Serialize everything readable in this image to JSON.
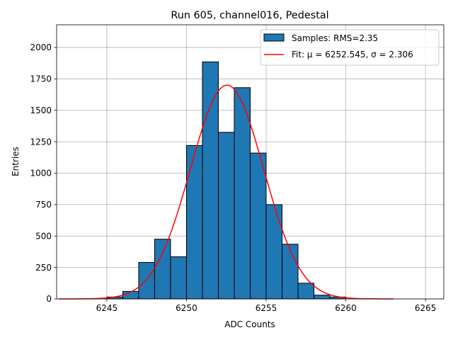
{
  "chart_data": {
    "type": "bar",
    "title": "Run 605, channel016, Pedestal",
    "xlabel": "ADC Counts",
    "ylabel": "Entries",
    "xlim": [
      6241.85,
      6266.15
    ],
    "ylim": [
      0,
      2180
    ],
    "grid": true,
    "legend_position": "top-right",
    "xticks": [
      6245,
      6250,
      6255,
      6260,
      6265
    ],
    "xtick_labels": [
      "6245",
      "6250",
      "6255",
      "6260",
      "6265"
    ],
    "yticks": [
      0,
      250,
      500,
      750,
      1000,
      1250,
      1500,
      1750,
      2000
    ],
    "ytick_labels": [
      "0",
      "250",
      "500",
      "750",
      "1000",
      "1250",
      "1500",
      "1750",
      "2000"
    ],
    "histogram": {
      "name": "Samples: RMS=2.35",
      "color": "#1f77b4",
      "edge_color": "#000000",
      "bin_edges": [
        6245,
        6246,
        6247,
        6248,
        6249,
        6250,
        6251,
        6252,
        6253,
        6254,
        6255,
        6256,
        6257,
        6258,
        6259,
        6260
      ],
      "counts": [
        15,
        60,
        290,
        475,
        335,
        1220,
        1885,
        1325,
        1680,
        1160,
        750,
        435,
        125,
        30,
        15
      ]
    },
    "fit": {
      "name": "Fit: μ = 6252.545, σ = 2.306",
      "color": "#ff0000",
      "mu": 6252.545,
      "sigma": 2.306,
      "amplitude": 1700,
      "x_range": [
        6242,
        6263
      ]
    }
  }
}
